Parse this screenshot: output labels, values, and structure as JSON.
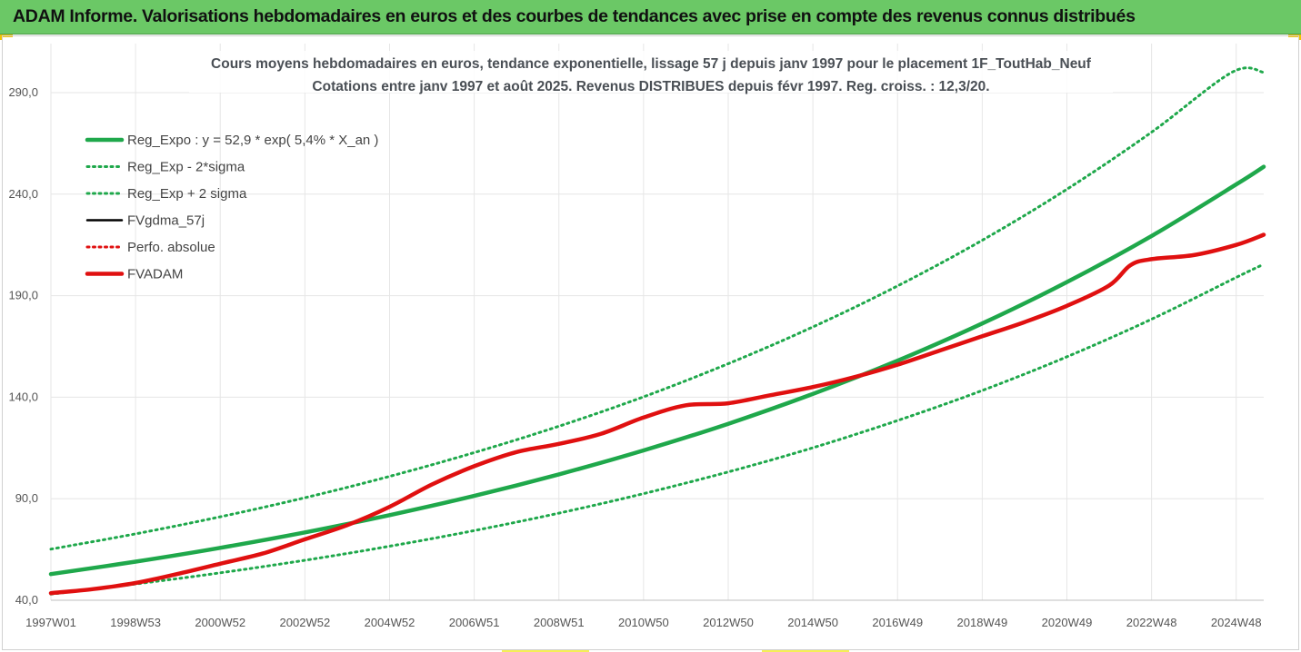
{
  "header": {
    "banner_title": "ADAM Informe. Valorisations hebdomadaires en euros et des courbes de tendances avec prise en compte des revenus connus distribués"
  },
  "colors": {
    "banner_bg": "#6bc866",
    "reg_expo": "#1fa84b",
    "bands": "#1fa84b",
    "fvgdma": "#000000",
    "perfo": "#e01010",
    "fvadam": "#e01010",
    "grid": "#e6e6e6"
  },
  "chart_data": {
    "type": "line",
    "title_line1": "Cours moyens hebdomadaires en euros, tendance exponentielle, lissage 57 j depuis janv 1997 pour le placement 1F_ToutHab_Neuf",
    "title_line2": "Cotations entre janv 1997 et août 2025. Revenus DISTRIBUES depuis févr 1997. Reg. croiss. : 12,3/20.",
    "xlabel": "",
    "ylabel": "",
    "x_range": [
      1997.0,
      2025.65
    ],
    "ylim": [
      40,
      300
    ],
    "y_ticks": [
      40,
      90,
      140,
      190,
      240,
      290
    ],
    "y_tick_labels": [
      "40,0",
      "90,0",
      "140,0",
      "190,0",
      "240,0",
      "290,0"
    ],
    "x_ticks": [
      {
        "label": "1997W01",
        "x": 1997.0
      },
      {
        "label": "1998W53",
        "x": 1999.0
      },
      {
        "label": "2000W52",
        "x": 2001.0
      },
      {
        "label": "2002W52",
        "x": 2003.0
      },
      {
        "label": "2004W52",
        "x": 2005.0
      },
      {
        "label": "2006W51",
        "x": 2007.0
      },
      {
        "label": "2008W51",
        "x": 2009.0
      },
      {
        "label": "2010W50",
        "x": 2011.0
      },
      {
        "label": "2012W50",
        "x": 2013.0
      },
      {
        "label": "2014W50",
        "x": 2015.0
      },
      {
        "label": "2016W49",
        "x": 2017.0
      },
      {
        "label": "2018W49",
        "x": 2019.0
      },
      {
        "label": "2020W49",
        "x": 2021.0
      },
      {
        "label": "2022W48",
        "x": 2023.0
      },
      {
        "label": "2024W48",
        "x": 2025.0
      }
    ],
    "grid": true,
    "legend_position": "top-left",
    "series": [
      {
        "name": "Reg_Expo : y = 52,9 * exp( 5,4% *  X_an )",
        "style": "solid-thick",
        "color": "#1fa84b",
        "points": [
          [
            1997.0,
            52.9
          ],
          [
            1999.0,
            59.0
          ],
          [
            2001.0,
            65.8
          ],
          [
            2003.0,
            73.4
          ],
          [
            2005.0,
            81.9
          ],
          [
            2007.0,
            91.4
          ],
          [
            2009.0,
            102.0
          ],
          [
            2011.0,
            113.8
          ],
          [
            2013.0,
            126.9
          ],
          [
            2015.0,
            141.6
          ],
          [
            2017.0,
            158.0
          ],
          [
            2019.0,
            176.3
          ],
          [
            2021.0,
            196.7
          ],
          [
            2023.0,
            219.4
          ],
          [
            2025.0,
            244.8
          ],
          [
            2025.65,
            253.5
          ]
        ]
      },
      {
        "name": "Reg_Exp - 2*sigma",
        "style": "dotted",
        "color": "#1fa84b",
        "points": [
          [
            1997.0,
            43.0
          ],
          [
            1999.0,
            48.0
          ],
          [
            2001.0,
            53.5
          ],
          [
            2003.0,
            59.7
          ],
          [
            2005.0,
            66.6
          ],
          [
            2007.0,
            74.3
          ],
          [
            2009.0,
            82.9
          ],
          [
            2011.0,
            92.5
          ],
          [
            2013.0,
            103.2
          ],
          [
            2015.0,
            115.1
          ],
          [
            2017.0,
            128.5
          ],
          [
            2019.0,
            143.3
          ],
          [
            2021.0,
            159.9
          ],
          [
            2023.0,
            178.4
          ],
          [
            2025.0,
            199.0
          ],
          [
            2025.65,
            205.5
          ]
        ]
      },
      {
        "name": "Reg_Exp + 2 sigma",
        "style": "dotted",
        "color": "#1fa84b",
        "points": [
          [
            1997.0,
            65.2
          ],
          [
            1999.0,
            72.7
          ],
          [
            2001.0,
            81.1
          ],
          [
            2003.0,
            90.5
          ],
          [
            2005.0,
            101.0
          ],
          [
            2007.0,
            112.7
          ],
          [
            2009.0,
            125.7
          ],
          [
            2011.0,
            140.2
          ],
          [
            2013.0,
            156.5
          ],
          [
            2015.0,
            174.6
          ],
          [
            2017.0,
            194.8
          ],
          [
            2019.0,
            217.3
          ],
          [
            2021.0,
            242.4
          ],
          [
            2023.0,
            270.5
          ],
          [
            2024.9,
            300.0
          ],
          [
            2025.65,
            300.0
          ]
        ]
      },
      {
        "name": "FVgdma_57j",
        "style": "solid",
        "color": "#000000",
        "points": []
      },
      {
        "name": "Perfo. absolue",
        "style": "dotted",
        "color": "#e01010",
        "points": []
      },
      {
        "name": "FVADAM",
        "style": "solid-thick",
        "color": "#e01010",
        "points": [
          [
            1997.0,
            43.5
          ],
          [
            1998.0,
            45.5
          ],
          [
            1999.0,
            48.5
          ],
          [
            2000.0,
            53.0
          ],
          [
            2001.0,
            58.0
          ],
          [
            2002.0,
            63.0
          ],
          [
            2003.0,
            70.0
          ],
          [
            2004.0,
            77.0
          ],
          [
            2005.0,
            86.0
          ],
          [
            2006.0,
            97.0
          ],
          [
            2007.0,
            106.0
          ],
          [
            2008.0,
            113.0
          ],
          [
            2009.0,
            117.0
          ],
          [
            2010.0,
            122.0
          ],
          [
            2011.0,
            130.0
          ],
          [
            2012.0,
            136.0
          ],
          [
            2013.0,
            137.0
          ],
          [
            2014.0,
            141.0
          ],
          [
            2015.0,
            145.0
          ],
          [
            2016.0,
            150.0
          ],
          [
            2017.0,
            156.0
          ],
          [
            2018.0,
            163.0
          ],
          [
            2019.0,
            170.0
          ],
          [
            2020.0,
            177.0
          ],
          [
            2021.0,
            185.0
          ],
          [
            2022.0,
            195.0
          ],
          [
            2022.5,
            205.0
          ],
          [
            2023.0,
            208.0
          ],
          [
            2024.0,
            210.0
          ],
          [
            2025.0,
            215.0
          ],
          [
            2025.65,
            220.0
          ]
        ]
      }
    ]
  }
}
